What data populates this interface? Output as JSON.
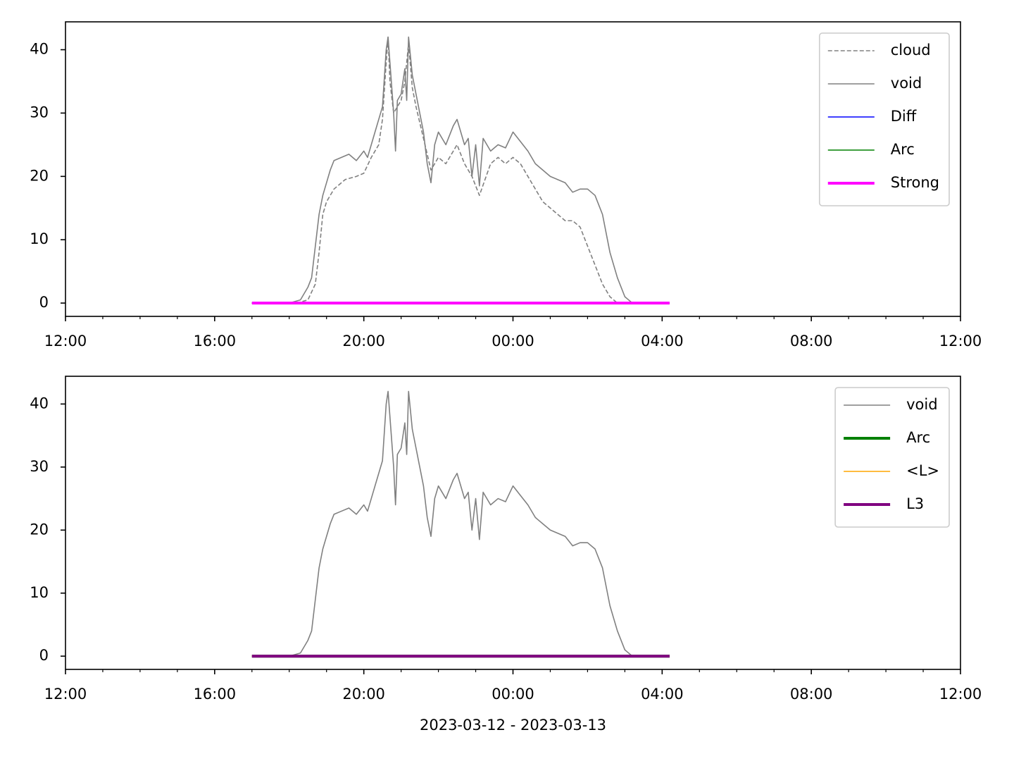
{
  "chart_data": [
    {
      "type": "line",
      "xlim": [
        12,
        36.0
      ],
      "ylim": [
        -2.1,
        44.4
      ],
      "xticks": [
        {
          "value": 12,
          "label": "12:00"
        },
        {
          "value": 16,
          "label": "16:00"
        },
        {
          "value": 20,
          "label": "20:00"
        },
        {
          "value": 24,
          "label": "00:00"
        },
        {
          "value": 28,
          "label": "04:00"
        },
        {
          "value": 32,
          "label": "08:00"
        },
        {
          "value": 36,
          "label": "12:00"
        }
      ],
      "xminorticks": [
        13,
        14,
        15,
        17,
        18,
        19,
        21,
        22,
        23,
        25,
        26,
        27,
        29,
        30,
        31,
        33,
        34,
        35
      ],
      "yticks": [
        0,
        10,
        20,
        30,
        40
      ],
      "legend": "upper right",
      "series": [
        {
          "name": "cloud",
          "color": "#808080",
          "linewidth": 1.6,
          "linestyle": "dashed",
          "x": [
            17.0,
            18.2,
            18.5,
            18.7,
            18.8,
            18.9,
            19.0,
            19.2,
            19.5,
            19.8,
            20.0,
            20.2,
            20.4,
            20.5,
            20.6,
            20.65,
            20.7,
            20.8,
            20.9,
            21.0,
            21.1,
            21.2,
            21.3,
            21.4,
            21.6,
            21.8,
            22.0,
            22.2,
            22.5,
            22.7,
            22.9,
            23.1,
            23.4,
            23.6,
            23.8,
            24.0,
            24.2,
            24.4,
            24.6,
            24.8,
            25.0,
            25.2,
            25.4,
            25.6,
            25.8,
            26.0,
            26.2,
            26.4,
            26.6,
            26.8,
            27.2
          ],
          "values": [
            0,
            0,
            0.5,
            3,
            8,
            14,
            16,
            18,
            19.5,
            20,
            20.5,
            23,
            25,
            29,
            38,
            42,
            35,
            30,
            31,
            32,
            35,
            41,
            34,
            31,
            26,
            21,
            23,
            22,
            25,
            22,
            20,
            17,
            22,
            23,
            22,
            23,
            22,
            20,
            18,
            16,
            15,
            14,
            13,
            13,
            12,
            9,
            6,
            3,
            1,
            0,
            0
          ]
        },
        {
          "name": "void",
          "color": "#808080",
          "linewidth": 1.6,
          "linestyle": "solid",
          "x": [
            17.0,
            18.0,
            18.3,
            18.5,
            18.6,
            18.7,
            18.8,
            18.9,
            19.0,
            19.1,
            19.2,
            19.4,
            19.6,
            19.8,
            20.0,
            20.1,
            20.2,
            20.3,
            20.4,
            20.5,
            20.6,
            20.65,
            20.7,
            20.8,
            20.85,
            20.9,
            21.0,
            21.1,
            21.15,
            21.2,
            21.3,
            21.4,
            21.5,
            21.6,
            21.7,
            21.8,
            21.9,
            22.0,
            22.2,
            22.4,
            22.5,
            22.6,
            22.7,
            22.8,
            22.9,
            23.0,
            23.1,
            23.2,
            23.4,
            23.6,
            23.8,
            24.0,
            24.2,
            24.4,
            24.6,
            24.8,
            25.0,
            25.2,
            25.4,
            25.6,
            25.8,
            26.0,
            26.2,
            26.4,
            26.6,
            26.8,
            27.0,
            27.2
          ],
          "values": [
            0,
            0,
            0.5,
            2.5,
            4,
            9,
            14,
            17,
            19,
            21,
            22.5,
            23,
            23.5,
            22.5,
            24,
            23,
            25,
            27,
            29,
            31,
            40,
            42,
            38,
            30,
            24,
            32,
            33,
            37,
            32,
            42,
            36,
            33,
            30,
            27,
            22,
            19,
            25,
            27,
            25,
            28,
            29,
            27,
            25,
            26,
            20,
            25,
            18.5,
            26,
            24,
            25,
            24.5,
            27,
            25.5,
            24,
            22,
            21,
            20,
            19.5,
            19,
            17.5,
            18,
            18,
            17,
            14,
            8,
            4,
            1,
            0
          ]
        },
        {
          "name": "Diff",
          "color": "#0000ff",
          "linewidth": 1.6,
          "linestyle": "solid",
          "x": [
            17.0,
            28.2
          ],
          "values": [
            0,
            0
          ]
        },
        {
          "name": "Arc",
          "color": "#008000",
          "linewidth": 1.6,
          "linestyle": "solid",
          "x": [
            17.0,
            28.2
          ],
          "values": [
            0,
            0
          ]
        },
        {
          "name": "Strong",
          "color": "#ff00ff",
          "linewidth": 4,
          "linestyle": "solid",
          "x": [
            17.0,
            28.2
          ],
          "values": [
            0,
            0
          ]
        }
      ]
    },
    {
      "type": "line",
      "xlabel": "2023-03-12 - 2023-03-13",
      "xlim": [
        12,
        36.0
      ],
      "ylim": [
        -2.1,
        44.4
      ],
      "xticks": [
        {
          "value": 12,
          "label": "12:00"
        },
        {
          "value": 16,
          "label": "16:00"
        },
        {
          "value": 20,
          "label": "20:00"
        },
        {
          "value": 24,
          "label": "00:00"
        },
        {
          "value": 28,
          "label": "04:00"
        },
        {
          "value": 32,
          "label": "08:00"
        },
        {
          "value": 36,
          "label": "12:00"
        }
      ],
      "xminorticks": [
        13,
        14,
        15,
        17,
        18,
        19,
        21,
        22,
        23,
        25,
        26,
        27,
        29,
        30,
        31,
        33,
        34,
        35
      ],
      "yticks": [
        0,
        10,
        20,
        30,
        40
      ],
      "legend": "upper right",
      "series": [
        {
          "name": "void",
          "color": "#808080",
          "linewidth": 1.6,
          "linestyle": "solid",
          "x": [
            17.0,
            18.0,
            18.3,
            18.5,
            18.6,
            18.7,
            18.8,
            18.9,
            19.0,
            19.1,
            19.2,
            19.4,
            19.6,
            19.8,
            20.0,
            20.1,
            20.2,
            20.3,
            20.4,
            20.5,
            20.6,
            20.65,
            20.7,
            20.8,
            20.85,
            20.9,
            21.0,
            21.1,
            21.15,
            21.2,
            21.3,
            21.4,
            21.5,
            21.6,
            21.7,
            21.8,
            21.9,
            22.0,
            22.2,
            22.4,
            22.5,
            22.6,
            22.7,
            22.8,
            22.9,
            23.0,
            23.1,
            23.2,
            23.4,
            23.6,
            23.8,
            24.0,
            24.2,
            24.4,
            24.6,
            24.8,
            25.0,
            25.2,
            25.4,
            25.6,
            25.8,
            26.0,
            26.2,
            26.4,
            26.6,
            26.8,
            27.0,
            27.2
          ],
          "values": [
            0,
            0,
            0.5,
            2.5,
            4,
            9,
            14,
            17,
            19,
            21,
            22.5,
            23,
            23.5,
            22.5,
            24,
            23,
            25,
            27,
            29,
            31,
            40,
            42,
            38,
            30,
            24,
            32,
            33,
            37,
            32,
            42,
            36,
            33,
            30,
            27,
            22,
            19,
            25,
            27,
            25,
            28,
            29,
            27,
            25,
            26,
            20,
            25,
            18.5,
            26,
            24,
            25,
            24.5,
            27,
            25.5,
            24,
            22,
            21,
            20,
            19.5,
            19,
            17.5,
            18,
            18,
            17,
            14,
            8,
            4,
            1,
            0
          ]
        },
        {
          "name": "Arc",
          "color": "#008000",
          "linewidth": 4,
          "linestyle": "solid",
          "x": [
            17.0,
            28.2
          ],
          "values": [
            0,
            0
          ]
        },
        {
          "name": "<L>",
          "color": "#ffa500",
          "linewidth": 1.6,
          "linestyle": "solid",
          "x": [
            17.0,
            28.2
          ],
          "values": [
            0,
            0
          ]
        },
        {
          "name": "L3",
          "color": "#800080",
          "linewidth": 4,
          "linestyle": "solid",
          "x": [
            17.0,
            28.2
          ],
          "values": [
            0,
            0
          ]
        }
      ]
    }
  ]
}
